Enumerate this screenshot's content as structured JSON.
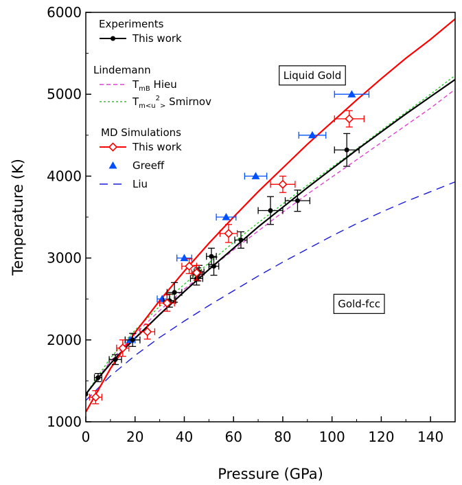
{
  "chart_data": {
    "type": "scatter",
    "xlabel": "Pressure (GPa)",
    "ylabel": "Temperature (K)",
    "xlim": [
      0,
      150
    ],
    "ylim": [
      1000,
      6000
    ],
    "xticks": [
      0,
      20,
      40,
      60,
      80,
      100,
      120,
      140
    ],
    "yticks": [
      1000,
      2000,
      3000,
      4000,
      5000,
      6000
    ],
    "grid": false,
    "annotations": [
      {
        "text": "Liquid Gold",
        "x": 92,
        "y": 5230
      },
      {
        "text": "Gold-fcc",
        "x": 111,
        "y": 2440
      }
    ],
    "legend": {
      "placement": "top-left",
      "groups": [
        {
          "title": "Experiments",
          "entries": [
            {
              "series": "exp",
              "label": "This work"
            }
          ]
        },
        {
          "title": "Lindemann",
          "entries": [
            {
              "series": "hieu",
              "label_main": "T",
              "label_sub": "mB",
              "label_rest": " Hieu"
            },
            {
              "series": "smirnov",
              "label_main": "T",
              "label_sub": "m<u",
              "label_sup": "2",
              "label_sub2": ">",
              "label_rest": " Smirnov"
            }
          ]
        },
        {
          "title": "MD Simulations",
          "entries": [
            {
              "series": "md",
              "label": "This work"
            },
            {
              "series": "greeff",
              "label": "Greeff"
            },
            {
              "series": "liu",
              "label": "Liu"
            }
          ]
        }
      ]
    },
    "series": [
      {
        "id": "exp_fit",
        "kind": "line",
        "color": "#000000",
        "dash": "",
        "x": [
          0,
          5,
          10,
          15,
          20,
          30,
          40,
          50,
          60,
          70,
          80,
          90,
          100,
          110,
          120,
          130,
          140,
          150
        ],
        "y": [
          1338,
          1530,
          1710,
          1870,
          2020,
          2310,
          2590,
          2860,
          3120,
          3380,
          3620,
          3860,
          4090,
          4320,
          4540,
          4760,
          4970,
          5180
        ]
      },
      {
        "id": "exp",
        "kind": "points",
        "color": "#000000",
        "marker": "circle",
        "x": [
          0,
          5,
          12,
          19,
          34,
          36,
          45,
          45.5,
          46,
          51,
          52,
          63,
          75,
          86,
          106
        ],
        "y": [
          1337,
          1540,
          1760,
          2000,
          2480,
          2580,
          2750,
          2800,
          2830,
          3020,
          2900,
          3220,
          3580,
          3700,
          4320
        ],
        "xerr": [
          0,
          1.5,
          2.5,
          3,
          2.5,
          3,
          2.5,
          2,
          2,
          2,
          2,
          2.5,
          5,
          5,
          5
        ],
        "yerr": [
          0,
          50,
          60,
          80,
          80,
          120,
          80,
          80,
          80,
          100,
          110,
          100,
          170,
          130,
          200
        ]
      },
      {
        "id": "hieu",
        "kind": "line",
        "color": "#e040d0",
        "dash": "6,4",
        "x": [
          0,
          10,
          20,
          30,
          40,
          50,
          60,
          70,
          80,
          90,
          100,
          110,
          120,
          130,
          140,
          150
        ],
        "y": [
          1337,
          1740,
          2070,
          2360,
          2620,
          2860,
          3100,
          3330,
          3560,
          3780,
          3990,
          4200,
          4410,
          4620,
          4830,
          5060
        ]
      },
      {
        "id": "smirnov",
        "kind": "line",
        "color": "#22cc22",
        "dash": "3,3",
        "x": [
          0,
          10,
          20,
          30,
          40,
          50,
          60,
          70,
          80,
          90,
          100,
          110,
          120,
          130,
          140,
          150
        ],
        "y": [
          1337,
          1780,
          2120,
          2410,
          2680,
          2940,
          3190,
          3430,
          3660,
          3890,
          4110,
          4330,
          4560,
          4780,
          5000,
          5230
        ]
      },
      {
        "id": "md_fit",
        "kind": "line",
        "color": "#ff0000",
        "dash": "",
        "x": [
          0,
          10,
          20,
          30,
          40,
          50,
          60,
          70,
          80,
          90,
          100,
          110,
          120,
          130,
          140,
          150
        ],
        "y": [
          1120,
          1650,
          2090,
          2480,
          2840,
          3180,
          3500,
          3810,
          4100,
          4390,
          4660,
          4930,
          5190,
          5440,
          5670,
          5920
        ]
      },
      {
        "id": "md",
        "kind": "points",
        "color": "#ff0000",
        "marker": "diamond",
        "x": [
          4,
          15,
          25,
          33,
          42,
          45,
          58,
          80,
          107
        ],
        "y": [
          1300,
          1900,
          2100,
          2450,
          2900,
          2820,
          3300,
          3900,
          4700
        ],
        "xerr": [
          2.5,
          2.5,
          3,
          3,
          3,
          2,
          3.5,
          5,
          6
        ],
        "yerr": [
          80,
          100,
          90,
          100,
          90,
          90,
          110,
          100,
          100
        ]
      },
      {
        "id": "greeff",
        "kind": "points",
        "color": "#0050ff",
        "marker": "triangle",
        "x": [
          18,
          31,
          40,
          57,
          69,
          92,
          108
        ],
        "y": [
          2000,
          2500,
          3000,
          3500,
          4000,
          4500,
          5000
        ],
        "xerr": [
          2,
          2,
          3,
          4,
          4.5,
          5.5,
          7
        ],
        "yerr": [
          0,
          0,
          0,
          0,
          0,
          0,
          0
        ]
      },
      {
        "id": "liu",
        "kind": "line",
        "color": "#1a1adc",
        "dash": "12,8",
        "x": [
          0,
          10,
          20,
          30,
          40,
          50,
          60,
          70,
          80,
          90,
          100,
          110,
          120,
          130,
          140,
          150
        ],
        "y": [
          1260,
          1560,
          1810,
          2030,
          2230,
          2420,
          2600,
          2780,
          2950,
          3110,
          3270,
          3420,
          3560,
          3690,
          3810,
          3930
        ]
      }
    ]
  }
}
